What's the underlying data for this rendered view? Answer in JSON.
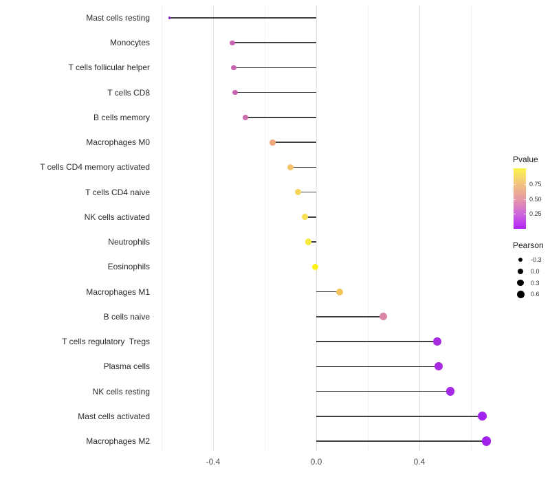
{
  "chart_data": {
    "type": "scatter",
    "style": "lollipop",
    "orientation": "horizontal",
    "title": "",
    "xlabel": "",
    "ylabel": "",
    "xlim": [
      -0.635,
      0.72
    ],
    "grid": true,
    "x_axis": {
      "major_ticks": [
        {
          "value": -0.4,
          "label": "-0.4"
        },
        {
          "value": 0.0,
          "label": "0.0"
        },
        {
          "value": 0.4,
          "label": "0.4"
        }
      ],
      "minor_ticks": [
        -0.6,
        -0.2,
        0.2,
        0.6
      ],
      "baseline_value": 0.0
    },
    "stem_color": "#3f3f3f",
    "points": [
      {
        "label": "Mast cells resting",
        "pearson": -0.57,
        "color": "#8f2bd6",
        "diameter": 3.4
      },
      {
        "label": "Monocytes",
        "pearson": -0.325,
        "color": "#c767b4",
        "diameter": 7.4
      },
      {
        "label": "T cells follicular helper",
        "pearson": -0.32,
        "color": "#c767b4",
        "diameter": 7.6
      },
      {
        "label": "T cells CD8",
        "pearson": -0.315,
        "color": "#c767b4",
        "diameter": 7.6
      },
      {
        "label": "B cells memory",
        "pearson": -0.275,
        "color": "#cb6cac",
        "diameter": 8.2
      },
      {
        "label": "Macrophages M0",
        "pearson": -0.17,
        "color": "#eea77b",
        "diameter": 8.8
      },
      {
        "label": "T cells CD4 memory activated",
        "pearson": -0.1,
        "color": "#f1c468",
        "diameter": 9.0
      },
      {
        "label": "T cells CD4 naive",
        "pearson": -0.07,
        "color": "#f5d55a",
        "diameter": 9.2
      },
      {
        "label": "NK cells activated",
        "pearson": -0.045,
        "color": "#f7de50",
        "diameter": 9.2
      },
      {
        "label": "Neutrophils",
        "pearson": -0.03,
        "color": "#f9e83e",
        "diameter": 9.4
      },
      {
        "label": "Eosinophils",
        "pearson": -0.005,
        "color": "#fdf215",
        "diameter": 9.0
      },
      {
        "label": "Macrophages M1",
        "pearson": 0.09,
        "color": "#f2c45c",
        "diameter": 10.0
      },
      {
        "label": "B cells naive",
        "pearson": 0.26,
        "color": "#d985a6",
        "diameter": 11.0
      },
      {
        "label": "T cells regulatory  Tregs",
        "pearson": 0.47,
        "color": "#a82be2",
        "diameter": 11.6
      },
      {
        "label": "Plasma cells",
        "pearson": 0.475,
        "color": "#a82be2",
        "diameter": 11.8
      },
      {
        "label": "NK cells resting",
        "pearson": 0.52,
        "color": "#a52ae6",
        "diameter": 12.4
      },
      {
        "label": "Mast cells activated",
        "pearson": 0.645,
        "color": "#a122ed",
        "diameter": 13.2
      },
      {
        "label": "Macrophages M2",
        "pearson": 0.66,
        "color": "#a122ed",
        "diameter": 13.6
      }
    ],
    "legends": {
      "pvalue": {
        "title": "Pvalue",
        "gradient_top_to_bottom": [
          "#fbf44b",
          "#f2c57d",
          "#e89aa4",
          "#ce69db",
          "#b322f7"
        ],
        "ticks": [
          {
            "label": "0.75",
            "fraction_from_top": 0.261
          },
          {
            "label": "0.50",
            "fraction_from_top": 0.506
          },
          {
            "label": "0.25",
            "fraction_from_top": 0.75
          }
        ]
      },
      "pearson": {
        "title": "Pearson",
        "items": [
          {
            "label": "-0.3",
            "diameter": 6.6
          },
          {
            "label": "0.0",
            "diameter": 8.4
          },
          {
            "label": "0.3",
            "diameter": 9.8
          },
          {
            "label": "0.6",
            "diameter": 11.0
          }
        ],
        "dot_color": "#000000"
      }
    }
  }
}
